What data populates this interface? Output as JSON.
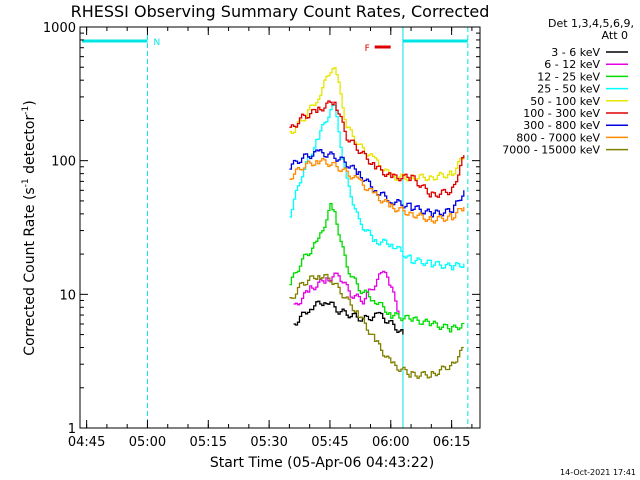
{
  "chart_data": {
    "type": "line",
    "title": "RHESSI Observing Summary Count Rates, Corrected",
    "xlabel": "Start Time (05-Apr-06 04:43:22)",
    "ylabel_main": "Corrected Count Rate (s",
    "ylabel_sup1": "-1",
    "ylabel_mid": " detector",
    "ylabel_sup2": "-1",
    "ylabel_end": ")",
    "y_scale": "log",
    "ylim": [
      1,
      1000
    ],
    "xlim": [
      "04:43:22",
      "06:22:00"
    ],
    "x_ticks": [
      "04:45",
      "05:00",
      "05:15",
      "05:30",
      "05:45",
      "06:00",
      "06:15"
    ],
    "y_ticks": [
      "1",
      "10",
      "100",
      "1000"
    ],
    "legend_header": "Det 1,3,4,5,6,9,",
    "legend_header2": "Att 0",
    "timestamp": "14-Oct-2021 17:41",
    "annotations": {
      "night_label": "N",
      "flare_label": "F",
      "night_color": "#00e5e5",
      "flare_color": "#dd0000"
    },
    "series": [
      {
        "name": "3 - 6 keV",
        "color": "#000000",
        "x": [
          "05:36",
          "05:40",
          "05:44",
          "05:47",
          "05:50",
          "05:53",
          "05:57",
          "06:00",
          "06:03"
        ],
        "values": [
          6,
          8,
          9,
          7.5,
          7,
          6.5,
          7,
          6,
          5
        ]
      },
      {
        "name": "6 - 12 keV",
        "color": "#e600e6",
        "x": [
          "05:36",
          "05:40",
          "05:44",
          "05:47",
          "05:50",
          "05:53",
          "05:56",
          "05:58",
          "06:00",
          "06:02"
        ],
        "values": [
          8,
          11,
          13,
          14,
          10,
          9,
          12,
          15,
          11,
          7
        ]
      },
      {
        "name": "12 - 25 keV",
        "color": "#00dd00",
        "x": [
          "05:35",
          "05:38",
          "05:42",
          "05:45",
          "05:46",
          "05:49",
          "05:52",
          "05:56",
          "06:00",
          "06:05",
          "06:10",
          "06:15",
          "06:18"
        ],
        "values": [
          12,
          18,
          25,
          45,
          40,
          16,
          11,
          9,
          7,
          6.5,
          6,
          5.5,
          6
        ]
      },
      {
        "name": "25 - 50 keV",
        "color": "#00ffff",
        "x": [
          "05:35",
          "05:38",
          "05:42",
          "05:45",
          "05:46",
          "05:49",
          "05:52",
          "05:56",
          "06:00",
          "06:05",
          "06:10",
          "06:15",
          "06:18"
        ],
        "values": [
          40,
          80,
          150,
          240,
          250,
          70,
          35,
          25,
          24,
          18,
          17,
          16,
          17
        ]
      },
      {
        "name": "50 - 100 keV",
        "color": "#e6e600",
        "x": [
          "05:35",
          "05:38",
          "05:42",
          "05:45",
          "05:46",
          "05:49",
          "05:52",
          "05:56",
          "06:00",
          "06:05",
          "06:10",
          "06:15",
          "06:18"
        ],
        "values": [
          160,
          200,
          300,
          480,
          520,
          180,
          130,
          100,
          75,
          75,
          75,
          80,
          110
        ]
      },
      {
        "name": "100 - 300 keV",
        "color": "#dd0000",
        "x": [
          "05:35",
          "05:38",
          "05:42",
          "05:45",
          "05:46",
          "05:49",
          "05:52",
          "05:56",
          "06:00",
          "06:05",
          "06:10",
          "06:15",
          "06:18"
        ],
        "values": [
          170,
          210,
          240,
          270,
          280,
          150,
          120,
          90,
          75,
          75,
          55,
          60,
          110
        ]
      },
      {
        "name": "300 - 800 keV",
        "color": "#0000dd",
        "x": [
          "05:35",
          "05:38",
          "05:42",
          "05:45",
          "05:48",
          "05:52",
          "05:56",
          "06:00",
          "06:05",
          "06:10",
          "06:15",
          "06:18"
        ],
        "values": [
          90,
          105,
          115,
          110,
          100,
          80,
          60,
          50,
          45,
          40,
          42,
          60
        ]
      },
      {
        "name": "800 - 7000 keV",
        "color": "#ff8c00",
        "x": [
          "05:35",
          "05:38",
          "05:42",
          "05:45",
          "05:48",
          "05:52",
          "05:56",
          "06:00",
          "06:05",
          "06:10",
          "06:15",
          "06:18"
        ],
        "values": [
          75,
          90,
          100,
          95,
          85,
          70,
          55,
          45,
          40,
          36,
          38,
          45
        ]
      },
      {
        "name": "7000 - 15000 keV",
        "color": "#808000",
        "x": [
          "05:35",
          "05:38",
          "05:42",
          "05:45",
          "05:48",
          "05:52",
          "05:56",
          "06:00",
          "06:05",
          "06:10",
          "06:15",
          "06:18"
        ],
        "values": [
          9,
          12,
          14,
          13,
          10,
          7,
          4.5,
          3,
          2.5,
          2.5,
          3,
          4
        ]
      }
    ]
  }
}
